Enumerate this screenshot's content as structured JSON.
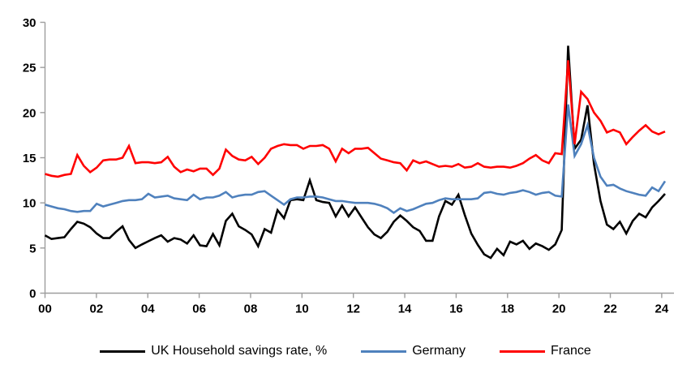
{
  "page": {
    "background": "#ffffff",
    "description": "Line chart of household savings rates (%) for UK, Germany and France, quarterly 2000-2024"
  },
  "chart_data": {
    "type": "line",
    "title": "",
    "frequency": "quarterly",
    "x_start_label": "2000Q1",
    "x_end_label": "2024Q1",
    "x_tick_labels": [
      "00",
      "02",
      "04",
      "06",
      "08",
      "10",
      "12",
      "14",
      "16",
      "18",
      "20",
      "22",
      "24"
    ],
    "y_tick_labels": [
      "0",
      "5",
      "10",
      "15",
      "20",
      "25",
      "30"
    ],
    "ylim": [
      0,
      30
    ],
    "y_tick_step": 5,
    "x_tick_step_years": 2,
    "grid": false,
    "legend_position": "bottom",
    "axis_color": "#9d9d9d",
    "tick_label_color": "#000000",
    "series": [
      {
        "id": "uk-household-savings-rate",
        "name": "UK Household savings rate, %",
        "color": "#000000",
        "values": [
          6.4,
          6.0,
          6.1,
          6.2,
          7.1,
          7.9,
          7.7,
          7.3,
          6.6,
          6.1,
          6.1,
          6.8,
          7.4,
          5.9,
          5.0,
          5.4,
          5.75,
          6.1,
          6.4,
          5.7,
          6.1,
          5.95,
          5.5,
          6.4,
          5.3,
          5.2,
          6.55,
          5.3,
          8.0,
          8.8,
          7.4,
          7.0,
          6.5,
          5.2,
          7.1,
          6.7,
          9.2,
          8.3,
          10.3,
          10.4,
          10.3,
          12.5,
          10.3,
          10.1,
          10.0,
          8.5,
          9.7,
          8.5,
          9.5,
          8.4,
          7.3,
          6.5,
          6.1,
          6.8,
          7.9,
          8.6,
          8.0,
          7.3,
          6.9,
          5.8,
          5.8,
          8.5,
          10.2,
          9.8,
          10.9,
          8.65,
          6.6,
          5.35,
          4.3,
          3.9,
          4.9,
          4.2,
          5.7,
          5.4,
          5.8,
          4.9,
          5.5,
          5.2,
          4.8,
          5.4,
          7.0,
          27.4,
          16.0,
          17.0,
          20.8,
          14.3,
          10.2,
          7.6,
          7.1,
          7.9,
          6.6,
          8.0,
          8.8,
          8.4,
          9.5,
          10.2,
          11.0
        ]
      },
      {
        "id": "germany",
        "name": "Germany",
        "color": "#4f81bd",
        "values": [
          9.8,
          9.6,
          9.4,
          9.3,
          9.1,
          9.0,
          9.1,
          9.1,
          9.9,
          9.6,
          9.8,
          10.0,
          10.2,
          10.3,
          10.3,
          10.4,
          11.0,
          10.6,
          10.7,
          10.8,
          10.5,
          10.4,
          10.3,
          10.9,
          10.4,
          10.6,
          10.6,
          10.8,
          11.2,
          10.6,
          10.8,
          10.9,
          10.9,
          11.2,
          11.3,
          10.8,
          10.3,
          9.8,
          10.4,
          10.6,
          10.6,
          10.7,
          10.7,
          10.6,
          10.4,
          10.2,
          10.2,
          10.1,
          10.0,
          10.0,
          10.0,
          9.9,
          9.7,
          9.4,
          8.9,
          9.4,
          9.1,
          9.3,
          9.6,
          9.9,
          10.0,
          10.3,
          10.5,
          10.4,
          10.4,
          10.4,
          10.4,
          10.5,
          11.1,
          11.2,
          11.0,
          10.9,
          11.1,
          11.2,
          11.4,
          11.2,
          10.9,
          11.1,
          11.2,
          10.8,
          10.7,
          20.9,
          15.2,
          16.5,
          18.6,
          15.0,
          12.9,
          11.9,
          12.0,
          11.6,
          11.3,
          11.1,
          10.9,
          10.8,
          11.7,
          11.3,
          12.4
        ]
      },
      {
        "id": "france",
        "name": "France",
        "color": "#ff0000",
        "values": [
          13.2,
          13.0,
          12.9,
          13.1,
          13.2,
          15.3,
          14.1,
          13.4,
          13.9,
          14.7,
          14.8,
          14.8,
          15.0,
          16.3,
          14.4,
          14.5,
          14.5,
          14.4,
          14.5,
          15.1,
          14.0,
          13.4,
          13.7,
          13.5,
          13.8,
          13.8,
          13.1,
          13.8,
          15.9,
          15.2,
          14.8,
          14.7,
          15.1,
          14.3,
          15.0,
          16.0,
          16.3,
          16.5,
          16.4,
          16.4,
          16.0,
          16.3,
          16.3,
          16.4,
          16.0,
          14.6,
          16.0,
          15.5,
          16.0,
          16.0,
          16.1,
          15.5,
          14.9,
          14.7,
          14.5,
          14.4,
          13.6,
          14.7,
          14.4,
          14.6,
          14.3,
          14.0,
          14.1,
          14.0,
          14.3,
          13.9,
          14.0,
          14.4,
          14.0,
          13.9,
          14.0,
          14.0,
          13.9,
          14.1,
          14.4,
          14.9,
          15.3,
          14.7,
          14.4,
          15.5,
          15.4,
          25.8,
          16.5,
          22.3,
          21.5,
          20.0,
          19.1,
          17.8,
          18.1,
          17.8,
          16.5,
          17.3,
          18.0,
          18.6,
          17.9,
          17.6,
          17.9
        ]
      }
    ]
  },
  "legend": {
    "items": [
      {
        "label": "UK Household savings rate, %",
        "color": "#000000"
      },
      {
        "label": "Germany",
        "color": "#4f81bd"
      },
      {
        "label": "France",
        "color": "#ff0000"
      }
    ]
  }
}
